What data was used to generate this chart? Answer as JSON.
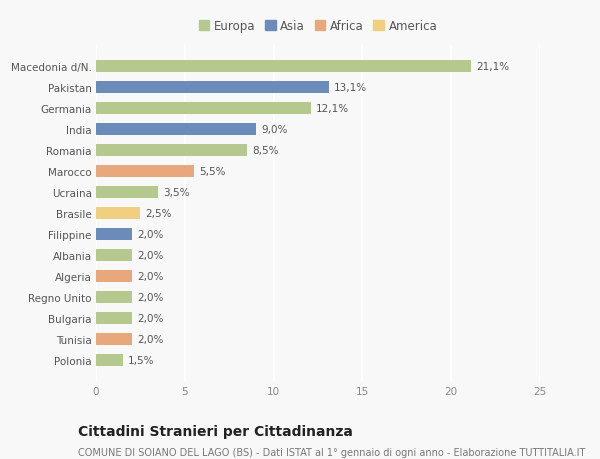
{
  "categories": [
    "Macedonia d/N.",
    "Pakistan",
    "Germania",
    "India",
    "Romania",
    "Marocco",
    "Ucraina",
    "Brasile",
    "Filippine",
    "Albania",
    "Algeria",
    "Regno Unito",
    "Bulgaria",
    "Tunisia",
    "Polonia"
  ],
  "values": [
    21.1,
    13.1,
    12.1,
    9.0,
    8.5,
    5.5,
    3.5,
    2.5,
    2.0,
    2.0,
    2.0,
    2.0,
    2.0,
    2.0,
    1.5
  ],
  "labels": [
    "21,1%",
    "13,1%",
    "12,1%",
    "9,0%",
    "8,5%",
    "5,5%",
    "3,5%",
    "2,5%",
    "2,0%",
    "2,0%",
    "2,0%",
    "2,0%",
    "2,0%",
    "2,0%",
    "1,5%"
  ],
  "colors": [
    "#b5c98e",
    "#6b8cba",
    "#b5c98e",
    "#6b8cba",
    "#b5c98e",
    "#e8a87c",
    "#b5c98e",
    "#f0d080",
    "#6b8cba",
    "#b5c98e",
    "#e8a87c",
    "#b5c98e",
    "#b5c98e",
    "#e8a87c",
    "#b5c98e"
  ],
  "legend": {
    "Europa": "#b5c98e",
    "Asia": "#6b8cba",
    "Africa": "#e8a87c",
    "America": "#f0d080"
  },
  "xlim": [
    0,
    25
  ],
  "xticks": [
    0,
    5,
    10,
    15,
    20,
    25
  ],
  "title": "Cittadini Stranieri per Cittadinanza",
  "subtitle": "COMUNE DI SOIANO DEL LAGO (BS) - Dati ISTAT al 1° gennaio di ogni anno - Elaborazione TUTTITALIA.IT",
  "bg_color": "#f8f8f8",
  "grid_color": "#ffffff",
  "bar_height": 0.55,
  "title_fontsize": 10,
  "subtitle_fontsize": 7,
  "label_fontsize": 7.5,
  "tick_fontsize": 7.5,
  "legend_fontsize": 8.5
}
